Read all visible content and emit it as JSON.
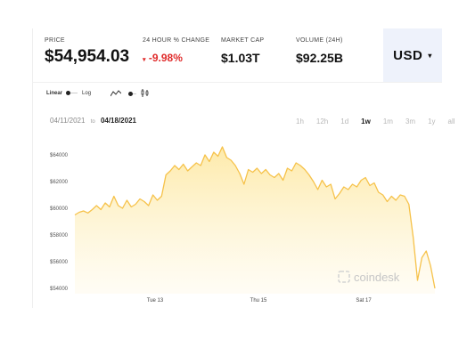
{
  "header": {
    "price_label": "PRICE",
    "price_value": "$54,954.03",
    "change_label": "24 HOUR % CHANGE",
    "change_value": "-9.98%",
    "mcap_label": "MARKET CAP",
    "mcap_value": "$1.03T",
    "volume_label": "VOLUME (24H)",
    "volume_value": "$92.25B",
    "currency": "USD"
  },
  "controls": {
    "linear_label": "Linear",
    "log_label": "Log",
    "date_from": "04/11/2021",
    "date_to_word": "to",
    "date_to": "04/18/2021",
    "periods": [
      "1h",
      "12h",
      "1d",
      "1w",
      "1m",
      "3m",
      "1y",
      "all"
    ],
    "active_period": "1w"
  },
  "brand": {
    "watermark": "coindesk"
  },
  "colors": {
    "line": "#f6c24a",
    "fill_top": "#fde9a6",
    "negative": "#e02c2c",
    "currency_bg": "#eef2fb"
  },
  "chart_data": {
    "type": "area",
    "title": "",
    "xlabel": "",
    "ylabel": "",
    "ylim": [
      53600,
      65600
    ],
    "y_ticks": [
      54000,
      56000,
      58000,
      60000,
      62000,
      64000
    ],
    "y_tick_labels": [
      "$54000",
      "$56000",
      "$58000",
      "$60000",
      "$62000",
      "$64000"
    ],
    "x_tick_labels": [
      "Tue 13",
      "Thu 15",
      "Sat 17"
    ],
    "series": [
      {
        "values": [
          59500,
          59700,
          59800,
          59650,
          59900,
          60200,
          59900,
          60400,
          60100,
          60900,
          60200,
          60000,
          60600,
          60100,
          60300,
          60700,
          60500,
          60200,
          61000,
          60600,
          60900,
          62500,
          62800,
          63200,
          62900,
          63300,
          62800,
          63100,
          63400,
          63200,
          64000,
          63500,
          64200,
          63900,
          64600,
          63800,
          63600,
          63200,
          62600,
          61800,
          62900,
          62700,
          63000,
          62600,
          62900,
          62500,
          62300,
          62600,
          62100,
          63000,
          62800,
          63400,
          63200,
          62900,
          62500,
          62000,
          61400,
          62100,
          61600,
          61800,
          60700,
          61100,
          61600,
          61400,
          61800,
          61600,
          62100,
          62300,
          61700,
          61900,
          61200,
          61000,
          60500,
          60900,
          60600,
          61000,
          60900,
          60300,
          57800,
          54600,
          56300,
          56800,
          55700,
          54000
        ]
      }
    ]
  }
}
